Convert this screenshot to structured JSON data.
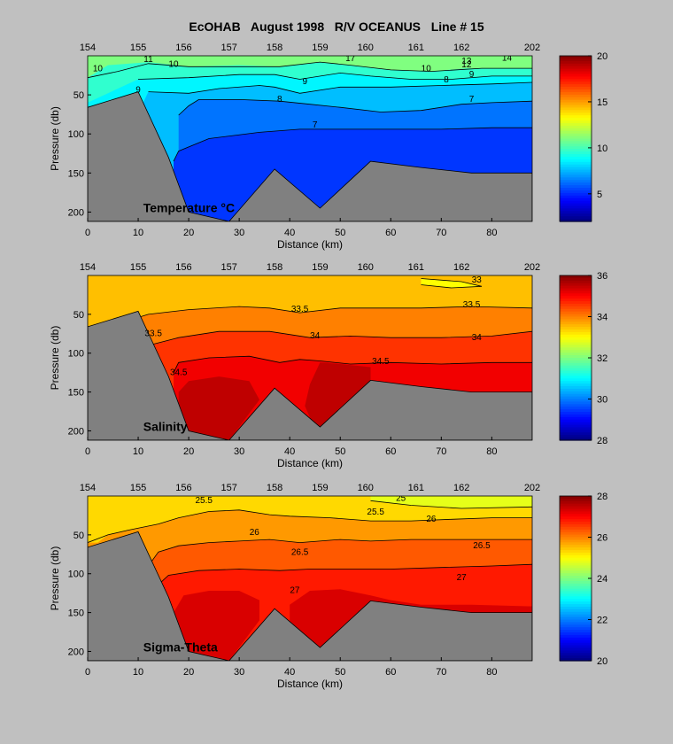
{
  "title": "EcOHAB   August 1998   R/V OCEANUS   Line # 15",
  "chart_data": [
    {
      "type": "heatmap",
      "panel_label": "Temperature °C",
      "xlabel": "Distance (km)",
      "ylabel": "Pressure (db)",
      "x_ticks": [
        0,
        10,
        20,
        30,
        40,
        50,
        60,
        70,
        80
      ],
      "y_ticks": [
        50,
        100,
        150,
        200
      ],
      "xlim": [
        0,
        88
      ],
      "ylim": [
        0,
        212
      ],
      "station_x": [
        0,
        10,
        19,
        28,
        37,
        46,
        55,
        65,
        74,
        88
      ],
      "station_labels": [
        "154",
        "155",
        "156",
        "157",
        "158",
        "159",
        "160",
        "161",
        "162",
        "202"
      ],
      "colorbar": {
        "min": 2,
        "max": 20,
        "ticks": [
          5,
          10,
          15,
          20
        ]
      },
      "contour_labels": [
        {
          "text": "10",
          "x": 2,
          "y": 20
        },
        {
          "text": "11",
          "x": 12,
          "y": 8
        },
        {
          "text": "10",
          "x": 17,
          "y": 14
        },
        {
          "text": "9",
          "x": 10,
          "y": 47
        },
        {
          "text": "9",
          "x": 43,
          "y": 36
        },
        {
          "text": "8",
          "x": 38,
          "y": 59
        },
        {
          "text": "7",
          "x": 45,
          "y": 92
        },
        {
          "text": "7",
          "x": 76,
          "y": 59
        },
        {
          "text": "8",
          "x": 71,
          "y": 34
        },
        {
          "text": "9",
          "x": 76,
          "y": 27
        },
        {
          "text": "10",
          "x": 67,
          "y": 20
        },
        {
          "text": "12",
          "x": 75,
          "y": 15
        },
        {
          "text": "13",
          "x": 75,
          "y": 10
        },
        {
          "text": "14",
          "x": 83,
          "y": 6
        },
        {
          "text": "17",
          "x": 52,
          "y": 7
        }
      ]
    },
    {
      "type": "heatmap",
      "panel_label": "Salinity",
      "xlabel": "Distance (km)",
      "ylabel": "Pressure (db)",
      "x_ticks": [
        0,
        10,
        20,
        30,
        40,
        50,
        60,
        70,
        80
      ],
      "y_ticks": [
        50,
        100,
        150,
        200
      ],
      "xlim": [
        0,
        88
      ],
      "ylim": [
        0,
        212
      ],
      "station_x": [
        0,
        10,
        19,
        28,
        37,
        46,
        55,
        65,
        74,
        88
      ],
      "station_labels": [
        "154",
        "155",
        "156",
        "157",
        "158",
        "159",
        "160",
        "161",
        "162",
        "202"
      ],
      "colorbar": {
        "min": 28,
        "max": 36,
        "ticks": [
          28,
          30,
          32,
          34,
          36
        ]
      },
      "contour_labels": [
        {
          "text": "33",
          "x": 77,
          "y": 9
        },
        {
          "text": "33.5",
          "x": 42,
          "y": 47
        },
        {
          "text": "33.5",
          "x": 76,
          "y": 41
        },
        {
          "text": "34",
          "x": 45,
          "y": 81
        },
        {
          "text": "34",
          "x": 77,
          "y": 83
        },
        {
          "text": "34.5",
          "x": 58,
          "y": 114
        },
        {
          "text": "33.5",
          "x": 13,
          "y": 78
        },
        {
          "text": "34.5",
          "x": 18,
          "y": 128
        }
      ]
    },
    {
      "type": "heatmap",
      "panel_label": "Sigma-Theta",
      "xlabel": "Distance (km)",
      "ylabel": "Pressure (db)",
      "x_ticks": [
        0,
        10,
        20,
        30,
        40,
        50,
        60,
        70,
        80
      ],
      "y_ticks": [
        50,
        100,
        150,
        200
      ],
      "xlim": [
        0,
        88
      ],
      "ylim": [
        0,
        212
      ],
      "station_x": [
        0,
        10,
        19,
        28,
        37,
        46,
        55,
        65,
        74,
        88
      ],
      "station_labels": [
        "154",
        "155",
        "156",
        "157",
        "158",
        "159",
        "160",
        "161",
        "162",
        "202"
      ],
      "colorbar": {
        "min": 20,
        "max": 28,
        "ticks": [
          20,
          22,
          24,
          26,
          28
        ]
      },
      "contour_labels": [
        {
          "text": "25.5",
          "x": 23,
          "y": 9
        },
        {
          "text": "25",
          "x": 62,
          "y": 6
        },
        {
          "text": "25.5",
          "x": 57,
          "y": 24
        },
        {
          "text": "26",
          "x": 33,
          "y": 50
        },
        {
          "text": "26",
          "x": 68,
          "y": 33
        },
        {
          "text": "26.5",
          "x": 42,
          "y": 76
        },
        {
          "text": "26.5",
          "x": 78,
          "y": 67
        },
        {
          "text": "27",
          "x": 41,
          "y": 125
        },
        {
          "text": "27",
          "x": 74,
          "y": 108
        }
      ]
    }
  ]
}
